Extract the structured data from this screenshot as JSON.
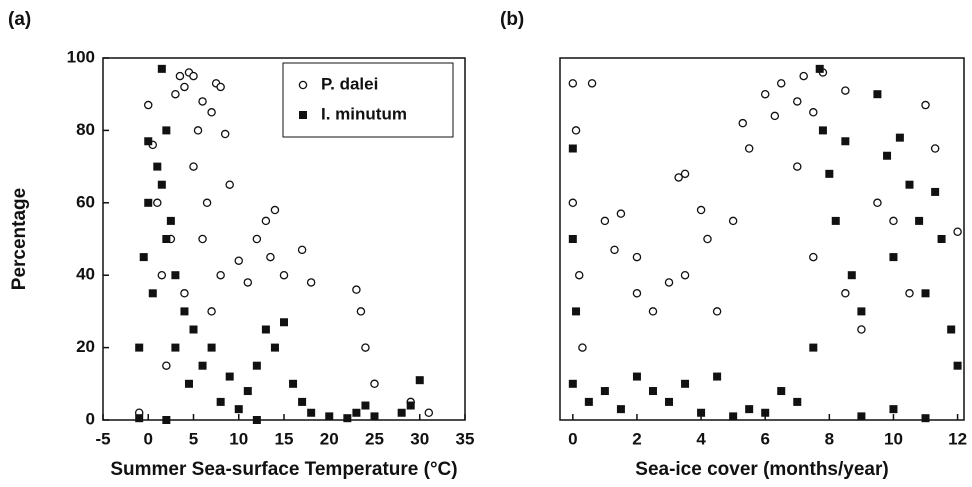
{
  "chart_data": [
    {
      "type": "scatter",
      "label": "(a)",
      "xlabel": "Summer Sea-surface Temperature (°C)",
      "ylabel": "Percentage",
      "xlim": [
        -5,
        35
      ],
      "xticks": [
        -5,
        0,
        5,
        10,
        15,
        20,
        25,
        30,
        35
      ],
      "ylim": [
        0,
        100
      ],
      "yticks": [
        0,
        20,
        40,
        60,
        80,
        100
      ],
      "legend": "upper right",
      "series": [
        {
          "name": "P. dalei",
          "marker": "open-circle",
          "color": "#111111",
          "x": [
            -1,
            0,
            0.5,
            1,
            1.5,
            2,
            2.5,
            3,
            3.5,
            4,
            4.5,
            5,
            5,
            5.5,
            6,
            6.5,
            7,
            7.5,
            8,
            8,
            8.5,
            9,
            4,
            6,
            7,
            10,
            11,
            12,
            13,
            13.5,
            14,
            15,
            17,
            18,
            23,
            23.5,
            24,
            25,
            29,
            31
          ],
          "values": [
            2,
            87,
            76,
            60,
            40,
            15,
            50,
            90,
            95,
            92,
            96,
            95,
            70,
            80,
            88,
            60,
            85,
            93,
            92,
            40,
            79,
            65,
            35,
            50,
            30,
            44,
            38,
            50,
            55,
            45,
            58,
            40,
            47,
            38,
            36,
            30,
            20,
            10,
            5,
            2
          ]
        },
        {
          "name": "I. minutum",
          "marker": "filled-square",
          "color": "#111111",
          "x": [
            -1,
            -0.5,
            0,
            0,
            0.5,
            1,
            1.5,
            1.5,
            2,
            2,
            2.5,
            3,
            3,
            4,
            4.5,
            5,
            6,
            7,
            8,
            9,
            10,
            11,
            12,
            13,
            14,
            15,
            16,
            17,
            18,
            20,
            22,
            23,
            24,
            25,
            28,
            29,
            30,
            -1,
            2,
            12
          ],
          "values": [
            20,
            45,
            60,
            77,
            35,
            70,
            97,
            65,
            80,
            50,
            55,
            40,
            20,
            30,
            10,
            25,
            15,
            20,
            5,
            12,
            3,
            8,
            15,
            25,
            20,
            27,
            10,
            5,
            2,
            1,
            0.5,
            2,
            4,
            1,
            2,
            4,
            11,
            0.5,
            0,
            0
          ]
        }
      ]
    },
    {
      "type": "scatter",
      "label": "(b)",
      "xlabel": "Sea-ice cover (months/year)",
      "xlim": [
        -0.4,
        12.2
      ],
      "xticks": [
        0,
        2,
        4,
        6,
        8,
        10,
        12
      ],
      "ylim": [
        0,
        100
      ],
      "series": [
        {
          "marker": "open-circle",
          "color": "#111111",
          "x": [
            0,
            0.1,
            0,
            0.2,
            0.6,
            0.3,
            1,
            1.3,
            1.5,
            2,
            2,
            2.5,
            3,
            3.3,
            3.5,
            3.5,
            4,
            4.2,
            4.5,
            5,
            5.3,
            5.5,
            6,
            6.5,
            6.3,
            7,
            7.2,
            7.5,
            7.8,
            8.5,
            7,
            7.5,
            8.5,
            9,
            9.5,
            10,
            10.5,
            11,
            11.3,
            12
          ],
          "values": [
            93,
            80,
            60,
            40,
            93,
            20,
            55,
            47,
            57,
            45,
            35,
            30,
            38,
            67,
            68,
            40,
            58,
            50,
            30,
            55,
            82,
            75,
            90,
            93,
            84,
            88,
            95,
            85,
            96,
            91,
            70,
            45,
            35,
            25,
            60,
            55,
            35,
            87,
            75,
            52
          ]
        },
        {
          "marker": "filled-square",
          "color": "#111111",
          "x": [
            0,
            0,
            0.1,
            0,
            0.5,
            1,
            1.5,
            2,
            2.5,
            3,
            3.5,
            4,
            4.5,
            5,
            5.5,
            6,
            6.5,
            7,
            7.5,
            7.7,
            7.8,
            8,
            8.2,
            8.5,
            8.7,
            9,
            9.5,
            9.8,
            10,
            10.2,
            10.5,
            10.8,
            11,
            11.3,
            11.5,
            11.8,
            12,
            9,
            10,
            11
          ],
          "values": [
            75,
            50,
            30,
            10,
            5,
            8,
            3,
            12,
            8,
            5,
            10,
            2,
            12,
            1,
            3,
            2,
            8,
            5,
            20,
            97,
            80,
            68,
            55,
            77,
            40,
            30,
            90,
            73,
            45,
            78,
            65,
            55,
            35,
            63,
            50,
            25,
            15,
            1,
            3,
            0.5
          ]
        }
      ]
    }
  ]
}
